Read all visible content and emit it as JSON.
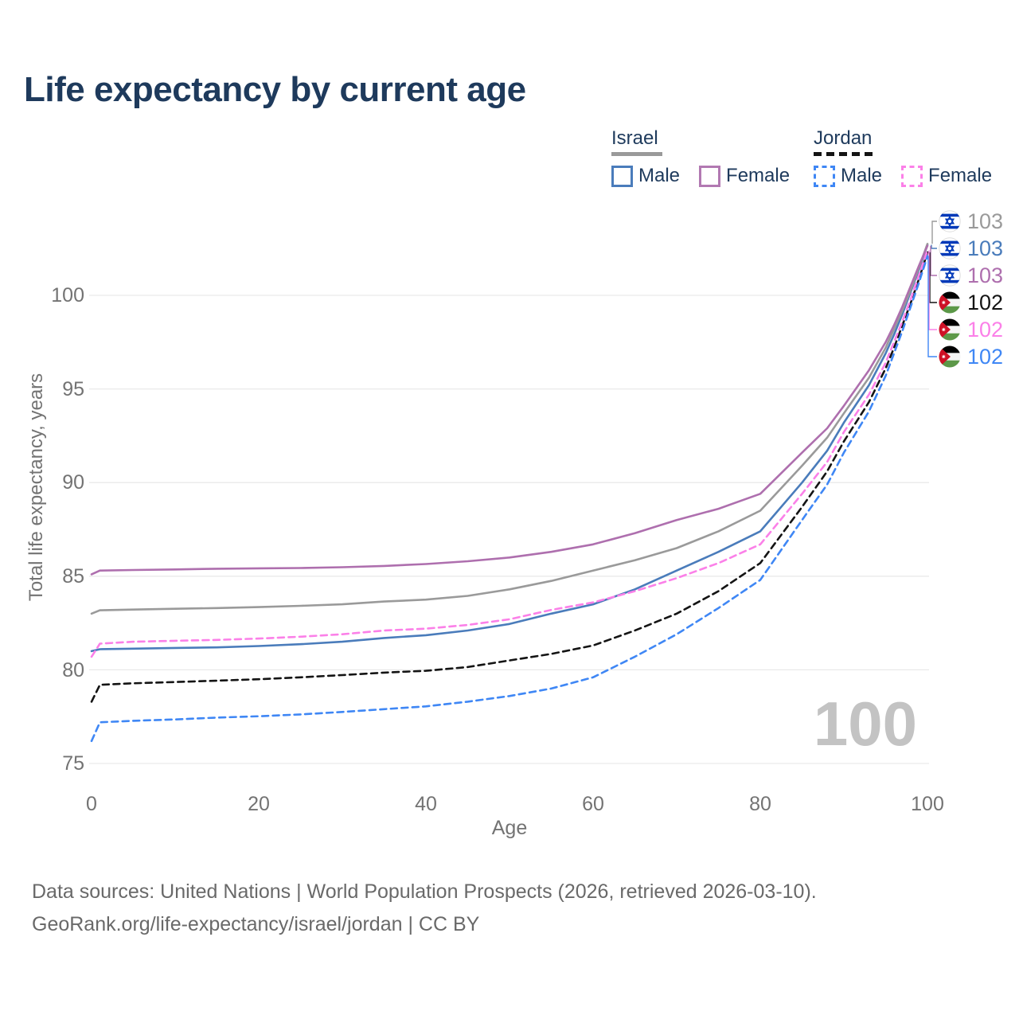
{
  "title": "Life expectancy by current age",
  "legend": {
    "groups": [
      {
        "country": "Israel",
        "line_color": "#9a9a9a",
        "line_style": "solid",
        "items": [
          {
            "label": "Male",
            "color": "#4a7cbb"
          },
          {
            "label": "Female",
            "color": "#b279b2"
          }
        ]
      },
      {
        "country": "Jordan",
        "line_color": "#141414",
        "line_style": "dashed",
        "items": [
          {
            "label": "Male",
            "color": "#3f87f5"
          },
          {
            "label": "Female",
            "color": "#fb80e8"
          }
        ]
      }
    ]
  },
  "watermark_age": "100",
  "end_labels": [
    {
      "flag": "israel",
      "value": "103",
      "color": "#9a9a9a",
      "series": "Israel"
    },
    {
      "flag": "israel",
      "value": "103",
      "color": "#4a7cbb",
      "series": "Israel Male"
    },
    {
      "flag": "israel",
      "value": "103",
      "color": "#ae6fae",
      "series": "Israel Female"
    },
    {
      "flag": "jordan",
      "value": "102",
      "color": "#141414",
      "series": "Jordan"
    },
    {
      "flag": "jordan",
      "value": "102",
      "color": "#fb80e8",
      "series": "Jordan Female"
    },
    {
      "flag": "jordan",
      "value": "102",
      "color": "#3f87f5",
      "series": "Jordan Male"
    }
  ],
  "footer": {
    "line1": "Data sources: United Nations | World Population Prospects (2026, retrieved 2026-03-10).",
    "line2": "GeoRank.org/life-expectancy/israel/jordan | CC BY"
  },
  "chart_data": {
    "type": "line",
    "title": "Life expectancy by current age",
    "xlabel": "Age",
    "ylabel": "Total life expectancy, years",
    "xlim": [
      0,
      100
    ],
    "ylim": [
      75,
      103
    ],
    "x_ticks": [
      0,
      20,
      40,
      60,
      80,
      100
    ],
    "y_ticks": [
      75,
      80,
      85,
      90,
      95,
      100
    ],
    "grid": true,
    "legend_position": "top-right",
    "x": [
      0,
      1,
      5,
      10,
      15,
      20,
      25,
      30,
      35,
      40,
      45,
      50,
      55,
      60,
      65,
      70,
      75,
      80,
      85,
      88,
      90,
      93,
      95,
      96,
      97,
      98,
      99,
      100
    ],
    "series": [
      {
        "id": "israel-male",
        "name": "Israel Male",
        "color": "#4a7cbb",
        "dashed": false,
        "label_row": 1,
        "values": [
          81.0,
          81.1,
          81.13,
          81.17,
          81.2,
          81.27,
          81.37,
          81.5,
          81.7,
          81.85,
          82.1,
          82.45,
          83.0,
          83.5,
          84.3,
          85.3,
          86.3,
          87.4,
          90.0,
          91.7,
          93.2,
          95.2,
          96.9,
          97.9,
          99.0,
          100.2,
          101.4,
          102.7
        ]
      },
      {
        "id": "israel-all",
        "name": "Israel",
        "color": "#9a9a9a",
        "dashed": false,
        "label_row": 0,
        "values": [
          83.0,
          83.18,
          83.22,
          83.26,
          83.3,
          83.35,
          83.42,
          83.5,
          83.65,
          83.75,
          83.95,
          84.3,
          84.75,
          85.3,
          85.85,
          86.5,
          87.4,
          88.5,
          90.9,
          92.4,
          93.7,
          95.6,
          97.2,
          98.2,
          99.2,
          100.3,
          101.5,
          102.75
        ]
      },
      {
        "id": "israel-female",
        "name": "Israel Female",
        "color": "#ae6fae",
        "dashed": false,
        "label_row": 2,
        "values": [
          85.1,
          85.3,
          85.33,
          85.36,
          85.4,
          85.42,
          85.44,
          85.48,
          85.55,
          85.65,
          85.8,
          86.0,
          86.3,
          86.7,
          87.3,
          88.0,
          88.6,
          89.4,
          91.6,
          92.9,
          94.1,
          96.0,
          97.5,
          98.4,
          99.4,
          100.5,
          101.6,
          102.65
        ]
      },
      {
        "id": "jordan-all",
        "name": "Jordan",
        "color": "#141414",
        "dashed": true,
        "label_row": 3,
        "values": [
          78.3,
          79.2,
          79.28,
          79.35,
          79.42,
          79.5,
          79.6,
          79.72,
          79.85,
          79.95,
          80.15,
          80.5,
          80.85,
          81.3,
          82.1,
          83.0,
          84.2,
          85.7,
          88.7,
          90.6,
          92.2,
          94.3,
          96.1,
          97.2,
          98.4,
          99.6,
          100.9,
          102.3
        ]
      },
      {
        "id": "jordan-female",
        "name": "Jordan Female",
        "color": "#fb80e8",
        "dashed": true,
        "label_row": 4,
        "values": [
          80.7,
          81.4,
          81.5,
          81.55,
          81.6,
          81.67,
          81.77,
          81.9,
          82.1,
          82.2,
          82.4,
          82.7,
          83.2,
          83.6,
          84.2,
          84.9,
          85.7,
          86.7,
          89.4,
          91.1,
          92.7,
          94.7,
          96.4,
          97.5,
          98.6,
          99.8,
          101.1,
          102.4
        ]
      },
      {
        "id": "jordan-male",
        "name": "Jordan Male",
        "color": "#3f87f5",
        "dashed": true,
        "label_row": 5,
        "values": [
          76.2,
          77.2,
          77.28,
          77.35,
          77.45,
          77.52,
          77.62,
          77.75,
          77.9,
          78.05,
          78.3,
          78.6,
          79.0,
          79.6,
          80.7,
          81.9,
          83.3,
          84.8,
          88.0,
          89.9,
          91.6,
          93.8,
          95.7,
          96.9,
          98.1,
          99.4,
          100.7,
          102.1
        ]
      }
    ]
  }
}
